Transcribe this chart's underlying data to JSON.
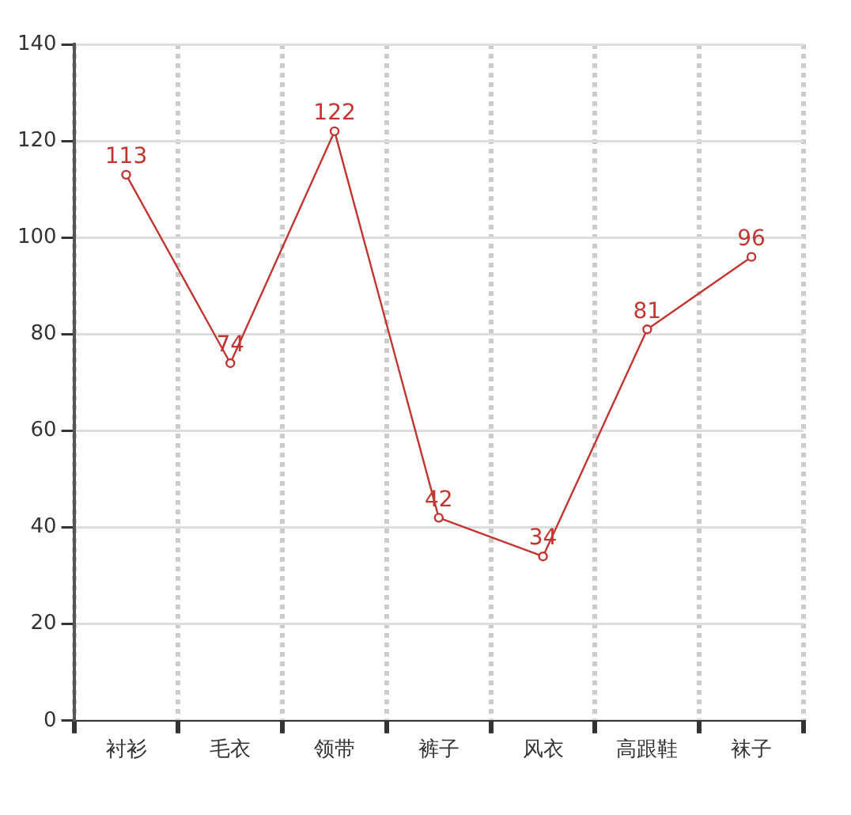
{
  "chart_data": {
    "type": "line",
    "categories": [
      "衬衫",
      "毛衣",
      "领带",
      "裤子",
      "风衣",
      "高跟鞋",
      "袜子"
    ],
    "series": [
      {
        "color": "#c23531",
        "values": [
          113,
          74,
          122,
          42,
          34,
          81,
          96
        ]
      }
    ],
    "ylim": [
      0,
      140
    ],
    "yticks": [
      0,
      20,
      40,
      60,
      80,
      100,
      120,
      140
    ],
    "grid": true,
    "legend": false,
    "marker": "circle",
    "line_style": "solid",
    "data_labels": true
  }
}
